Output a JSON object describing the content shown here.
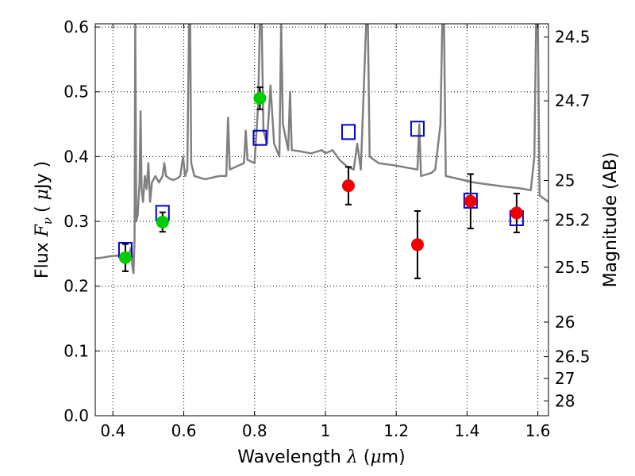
{
  "chart_data": {
    "type": "scatter",
    "xlabel": {
      "text": "Wavelength",
      "symbol": "λ",
      "unit_open": "(",
      "unit_mu": "μ",
      "unit_rest": "m)"
    },
    "ylabel": {
      "text": "Flux",
      "symbol_main": "F",
      "symbol_sub": "ν",
      "unit_open": "(",
      "unit_mu": "μ",
      "unit_rest": "Jy",
      "unit_close": ")"
    },
    "y2label": "Magnitude (AB)",
    "xlim": [
      0.35,
      1.63
    ],
    "ylim": [
      0.0,
      0.605
    ],
    "grid": true,
    "xticks": [
      {
        "v": 0.4,
        "label": "0.4"
      },
      {
        "v": 0.6,
        "label": "0.6"
      },
      {
        "v": 0.8,
        "label": "0.8"
      },
      {
        "v": 1.0,
        "label": "1"
      },
      {
        "v": 1.2,
        "label": "1.2"
      },
      {
        "v": 1.4,
        "label": "1.4"
      },
      {
        "v": 1.6,
        "label": "1.6"
      }
    ],
    "yticks": [
      {
        "v": 0.0,
        "label": "0.0"
      },
      {
        "v": 0.1,
        "label": "0.1"
      },
      {
        "v": 0.2,
        "label": "0.2"
      },
      {
        "v": 0.3,
        "label": "0.3"
      },
      {
        "v": 0.4,
        "label": "0.4"
      },
      {
        "v": 0.5,
        "label": "0.5"
      },
      {
        "v": 0.6,
        "label": "0.6"
      }
    ],
    "y2ticks": [
      {
        "flux": 0.5845,
        "label": "24.5"
      },
      {
        "flux": 0.4861,
        "label": "24.7"
      },
      {
        "flux": 0.3631,
        "label": "25"
      },
      {
        "flux": 0.302,
        "label": "25.2"
      },
      {
        "flux": 0.2291,
        "label": "25.5"
      },
      {
        "flux": 0.1445,
        "label": "26"
      },
      {
        "flux": 0.0912,
        "label": "26.5"
      },
      {
        "flux": 0.0575,
        "label": "27"
      },
      {
        "flux": 0.0229,
        "label": "28"
      }
    ],
    "series": [
      {
        "kind": "line",
        "color": "#808080",
        "points": [
          [
            0.35,
            0.243
          ],
          [
            0.37,
            0.244
          ],
          [
            0.39,
            0.246
          ],
          [
            0.41,
            0.247
          ],
          [
            0.43,
            0.246
          ],
          [
            0.445,
            0.25
          ],
          [
            0.452,
            0.26
          ],
          [
            0.455,
            0.23
          ],
          [
            0.458,
            0.22
          ],
          [
            0.461,
            0.27
          ],
          [
            0.463,
            0.605
          ],
          [
            0.466,
            0.3
          ],
          [
            0.47,
            0.31
          ],
          [
            0.475,
            0.36
          ],
          [
            0.478,
            0.47
          ],
          [
            0.481,
            0.35
          ],
          [
            0.485,
            0.33
          ],
          [
            0.49,
            0.37
          ],
          [
            0.495,
            0.35
          ],
          [
            0.5,
            0.39
          ],
          [
            0.505,
            0.33
          ],
          [
            0.51,
            0.36
          ],
          [
            0.52,
            0.37
          ],
          [
            0.53,
            0.36
          ],
          [
            0.54,
            0.37
          ],
          [
            0.545,
            0.39
          ],
          [
            0.55,
            0.37
          ],
          [
            0.56,
            0.366
          ],
          [
            0.57,
            0.364
          ],
          [
            0.58,
            0.366
          ],
          [
            0.59,
            0.37
          ],
          [
            0.598,
            0.4
          ],
          [
            0.604,
            0.37
          ],
          [
            0.61,
            0.38
          ],
          [
            0.612,
            0.48
          ],
          [
            0.615,
            0.605
          ],
          [
            0.618,
            0.605
          ],
          [
            0.621,
            0.39
          ],
          [
            0.63,
            0.37
          ],
          [
            0.66,
            0.365
          ],
          [
            0.7,
            0.37
          ],
          [
            0.72,
            0.37
          ],
          [
            0.725,
            0.46
          ],
          [
            0.73,
            0.38
          ],
          [
            0.75,
            0.385
          ],
          [
            0.77,
            0.39
          ],
          [
            0.775,
            0.44
          ],
          [
            0.78,
            0.395
          ],
          [
            0.8,
            0.39
          ],
          [
            0.81,
            0.48
          ],
          [
            0.815,
            0.605
          ],
          [
            0.82,
            0.605
          ],
          [
            0.825,
            0.44
          ],
          [
            0.835,
            0.42
          ],
          [
            0.845,
            0.51
          ],
          [
            0.855,
            0.42
          ],
          [
            0.87,
            0.4
          ],
          [
            0.875,
            0.605
          ],
          [
            0.88,
            0.45
          ],
          [
            0.895,
            0.41
          ],
          [
            0.9,
            0.5
          ],
          [
            0.905,
            0.41
          ],
          [
            0.93,
            0.408
          ],
          [
            0.96,
            0.405
          ],
          [
            0.99,
            0.41
          ],
          [
            1.0,
            0.405
          ],
          [
            1.02,
            0.41
          ],
          [
            1.04,
            0.395
          ],
          [
            1.06,
            0.385
          ],
          [
            1.08,
            0.38
          ],
          [
            1.09,
            0.42
          ],
          [
            1.1,
            0.38
          ],
          [
            1.115,
            0.605
          ],
          [
            1.12,
            0.605
          ],
          [
            1.125,
            0.4
          ],
          [
            1.15,
            0.39
          ],
          [
            1.2,
            0.386
          ],
          [
            1.23,
            0.383
          ],
          [
            1.26,
            0.38
          ],
          [
            1.265,
            0.45
          ],
          [
            1.27,
            0.37
          ],
          [
            1.3,
            0.375
          ],
          [
            1.31,
            0.38
          ],
          [
            1.325,
            0.45
          ],
          [
            1.33,
            0.605
          ],
          [
            1.335,
            0.605
          ],
          [
            1.34,
            0.37
          ],
          [
            1.38,
            0.365
          ],
          [
            1.42,
            0.36
          ],
          [
            1.46,
            0.357
          ],
          [
            1.5,
            0.354
          ],
          [
            1.55,
            0.351
          ],
          [
            1.58,
            0.348
          ],
          [
            1.59,
            0.4
          ],
          [
            1.595,
            0.605
          ],
          [
            1.6,
            0.605
          ],
          [
            1.605,
            0.34
          ],
          [
            1.63,
            0.33
          ]
        ]
      },
      {
        "kind": "marker",
        "shape": "square-open",
        "color": "#0000cc",
        "points": [
          [
            0.435,
            0.256
          ],
          [
            0.54,
            0.313
          ],
          [
            0.815,
            0.429
          ],
          [
            1.065,
            0.438
          ],
          [
            1.26,
            0.443
          ],
          [
            1.41,
            0.332
          ],
          [
            1.54,
            0.305
          ]
        ]
      },
      {
        "kind": "marker",
        "shape": "circle-filled",
        "color": "#00cc00",
        "points": [
          [
            0.435,
            0.244,
            0.021
          ],
          [
            0.54,
            0.299,
            0.015
          ],
          [
            0.815,
            0.49,
            0.017
          ]
        ]
      },
      {
        "kind": "marker",
        "shape": "circle-filled",
        "color": "#ee0000",
        "points": [
          [
            1.065,
            0.355,
            0.029
          ],
          [
            1.26,
            0.264,
            0.052
          ],
          [
            1.41,
            0.331,
            0.042
          ],
          [
            1.54,
            0.313,
            0.03
          ]
        ]
      }
    ]
  }
}
